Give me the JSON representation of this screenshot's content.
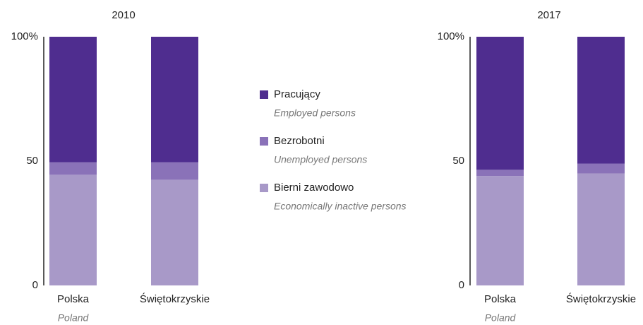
{
  "chart_data": [
    {
      "type": "stacked-bar",
      "title": "2010",
      "categories": [
        "Polska",
        "Świętokrzyskie"
      ],
      "category_subtitles": [
        "Poland",
        null
      ],
      "series": [
        {
          "name": "Bierni zawodowo",
          "name_en": "Economically inactive persons",
          "color": "#a899c8",
          "values": [
            44.5,
            42.5
          ]
        },
        {
          "name": "Bezrobotni",
          "name_en": "Unemployed persons",
          "color": "#8a72b8",
          "values": [
            5,
            7
          ]
        },
        {
          "name": "Pracujący",
          "name_en": "Employed persons",
          "color": "#4f2d8f",
          "values": [
            50.5,
            50.5
          ]
        }
      ],
      "ylim": [
        0,
        100
      ],
      "yticks": [
        0,
        50,
        {
          "value": 100,
          "label": "100%"
        }
      ]
    },
    {
      "type": "stacked-bar",
      "title": "2017",
      "categories": [
        "Polska",
        "Świętokrzyskie"
      ],
      "category_subtitles": [
        "Poland",
        null
      ],
      "series": [
        {
          "color": "#a899c8",
          "values": [
            44,
            45
          ]
        },
        {
          "color": "#8a72b8",
          "values": [
            2.5,
            4
          ]
        },
        {
          "color": "#4f2d8f",
          "values": [
            53.5,
            51
          ]
        }
      ],
      "ylim": [
        0,
        100
      ],
      "yticks": [
        0,
        50,
        {
          "value": 100,
          "label": "100%"
        }
      ]
    }
  ]
}
